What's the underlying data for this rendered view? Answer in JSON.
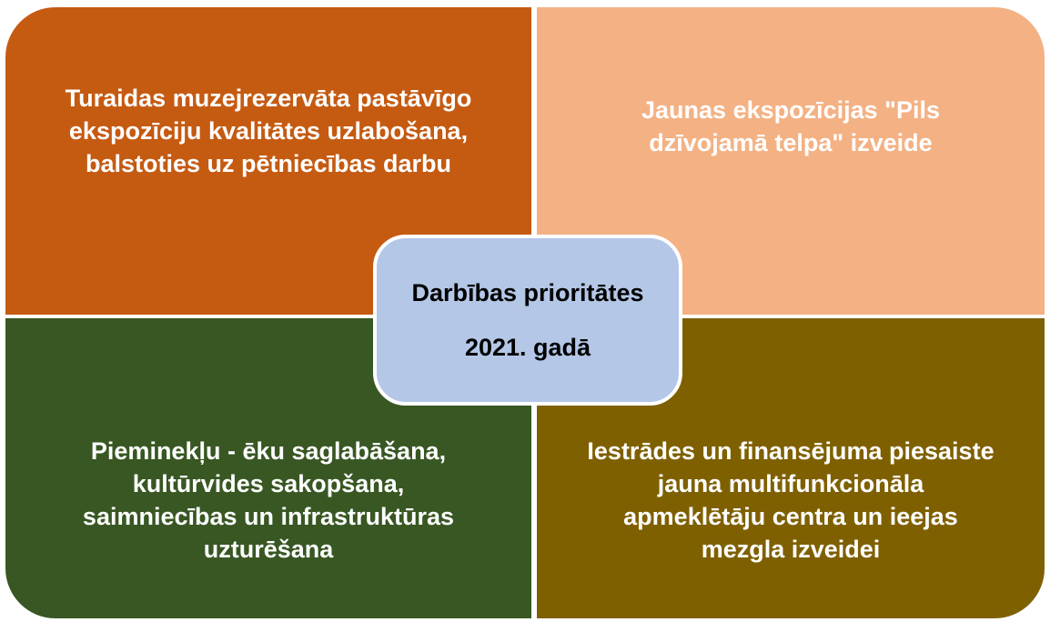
{
  "center": {
    "lines": [
      "Darbības prioritātes",
      "2021. gadā"
    ]
  },
  "quadrants": [
    {
      "lines": [
        "Turaidas muzejrezervāta pastāvīgo",
        "ekspozīciju kvalitātes uzlabošana,",
        "balstoties uz pētniecības darbu"
      ]
    },
    {
      "lines": [
        "Jaunas ekspozīcijas \"Pils",
        "dzīvojamā telpa\" izveide"
      ]
    },
    {
      "lines": [
        "Pieminekļu - ēku saglabāšana,",
        "kultūrvides sakopšana,",
        "saimniecības un infrastruktūras",
        "uzturēšana"
      ]
    },
    {
      "lines": [
        "Iestrādes un finansējuma piesaiste",
        "jauna multifunkcionāla",
        "apmeklētāju centra un ieejas",
        "mezgla izveidei"
      ]
    }
  ]
}
